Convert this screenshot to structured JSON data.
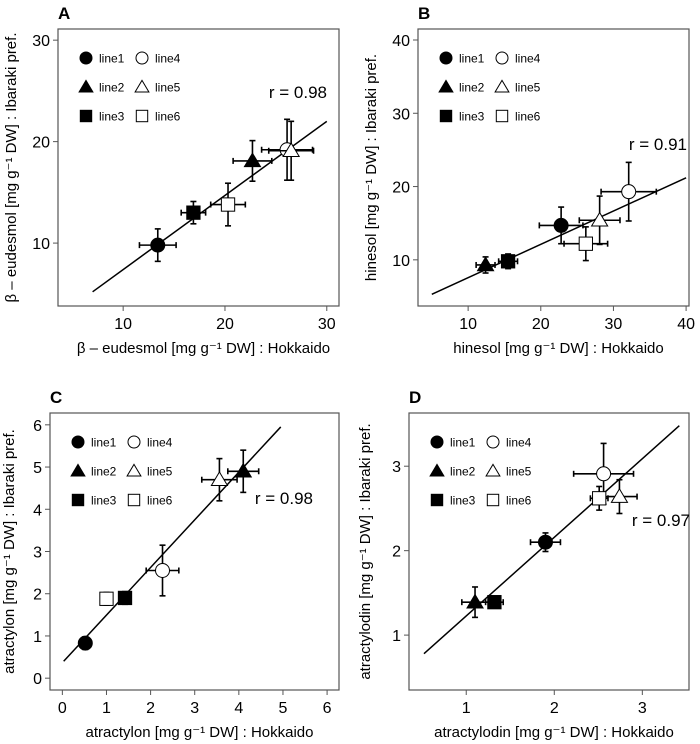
{
  "chart_data": [
    {
      "panel": "A",
      "type": "scatter",
      "xlabel": "β – eudesmol [mg g⁻¹ DW] : Hokkaido",
      "ylabel": "β – eudesmol [mg g⁻¹ DW] : Ibaraki pref.",
      "xlim": [
        3.6,
        31.2
      ],
      "ylim": [
        3.8,
        31.1
      ],
      "xticks": [
        10,
        20,
        30
      ],
      "yticks": [
        10,
        20,
        30
      ],
      "annotation": "r = 0.98",
      "fit_line": [
        [
          7,
          5.2
        ],
        [
          30,
          22
        ]
      ],
      "points": [
        {
          "name": "line1",
          "x": 13.4,
          "y": 9.8,
          "xerr": 1.8,
          "yerr": 1.6
        },
        {
          "name": "line2",
          "x": 22.7,
          "y": 18.1,
          "xerr": 1.9,
          "yerr": 2.0
        },
        {
          "name": "line3",
          "x": 16.9,
          "y": 13.0,
          "xerr": 1.2,
          "yerr": 1.1
        },
        {
          "name": "line4",
          "x": 26.1,
          "y": 19.2,
          "xerr": 2.5,
          "yerr": 3.0
        },
        {
          "name": "line5",
          "x": 26.5,
          "y": 19.1,
          "xerr": 2.2,
          "yerr": 2.9
        },
        {
          "name": "line6",
          "x": 20.3,
          "y": 13.8,
          "xerr": 1.7,
          "yerr": 2.1
        }
      ]
    },
    {
      "panel": "B",
      "type": "scatter",
      "xlabel": "hinesol [mg g⁻¹ DW] : Hokkaido",
      "ylabel": "hinesol [mg g⁻¹ DW] : Ibaraki pref.",
      "xlim": [
        3.1,
        40.4
      ],
      "ylim": [
        3.7,
        41.5
      ],
      "xticks": [
        10,
        20,
        30,
        40
      ],
      "yticks": [
        10,
        20,
        30,
        40
      ],
      "annotation": "r = 0.91",
      "fit_line": [
        [
          5,
          5.3
        ],
        [
          40,
          21.2
        ]
      ],
      "points": [
        {
          "name": "line1",
          "x": 22.8,
          "y": 14.7,
          "xerr": 3.0,
          "yerr": 2.5
        },
        {
          "name": "line2",
          "x": 12.4,
          "y": 9.3,
          "xerr": 1.3,
          "yerr": 1.1
        },
        {
          "name": "line3",
          "x": 15.5,
          "y": 9.8,
          "xerr": 1.3,
          "yerr": 1.0
        },
        {
          "name": "line4",
          "x": 32.1,
          "y": 19.3,
          "xerr": 3.8,
          "yerr": 4.0
        },
        {
          "name": "line5",
          "x": 28.1,
          "y": 15.4,
          "xerr": 2.8,
          "yerr": 3.3
        },
        {
          "name": "line6",
          "x": 26.2,
          "y": 12.2,
          "xerr": 3.0,
          "yerr": 2.3
        }
      ]
    },
    {
      "panel": "C",
      "type": "scatter",
      "xlabel": "atractylon [mg g⁻¹ DW] : Hokkaido",
      "ylabel": "atractylon [mg g⁻¹ DW] : Ibaraki pref.",
      "xlim": [
        -0.28,
        6.27
      ],
      "ylim": [
        -0.28,
        6.28
      ],
      "xticks": [
        0,
        1,
        2,
        3,
        4,
        5,
        6
      ],
      "yticks": [
        0,
        1,
        2,
        3,
        4,
        5,
        6
      ],
      "annotation": "r = 0.98",
      "fit_line": [
        [
          0.03,
          0.4
        ],
        [
          4.95,
          5.95
        ]
      ],
      "points": [
        {
          "name": "line1",
          "x": 0.52,
          "y": 0.83,
          "xerr": 0.05,
          "yerr": 0.15
        },
        {
          "name": "line2",
          "x": 4.1,
          "y": 4.9,
          "xerr": 0.35,
          "yerr": 0.5
        },
        {
          "name": "line3",
          "x": 1.42,
          "y": 1.9,
          "xerr": 0.1,
          "yerr": 0.15
        },
        {
          "name": "line4",
          "x": 2.27,
          "y": 2.55,
          "xerr": 0.37,
          "yerr": 0.6
        },
        {
          "name": "line5",
          "x": 3.56,
          "y": 4.7,
          "xerr": 0.4,
          "yerr": 0.5
        },
        {
          "name": "line6",
          "x": 1.0,
          "y": 1.88,
          "xerr": 0.05,
          "yerr": 0.15
        }
      ]
    },
    {
      "panel": "D",
      "type": "scatter",
      "xlabel": "atractylodin [mg g⁻¹ DW] : Hokkaido",
      "ylabel": "atractylodin [mg g⁻¹ DW] : Ibaraki pref.",
      "xlim": [
        0.35,
        3.53
      ],
      "ylim": [
        0.35,
        3.63
      ],
      "xticks": [
        1,
        2,
        3
      ],
      "yticks": [
        1,
        2,
        3
      ],
      "annotation": "r = 0.97",
      "fit_line": [
        [
          0.52,
          0.78
        ],
        [
          3.42,
          3.48
        ]
      ],
      "points": [
        {
          "name": "line1",
          "x": 1.9,
          "y": 2.1,
          "xerr": 0.17,
          "yerr": 0.11
        },
        {
          "name": "line2",
          "x": 1.1,
          "y": 1.39,
          "xerr": 0.15,
          "yerr": 0.18
        },
        {
          "name": "line3",
          "x": 1.32,
          "y": 1.39,
          "xerr": 0.1,
          "yerr": 0.03
        },
        {
          "name": "line4",
          "x": 2.56,
          "y": 2.91,
          "xerr": 0.34,
          "yerr": 0.36
        },
        {
          "name": "line5",
          "x": 2.74,
          "y": 2.64,
          "xerr": 0.2,
          "yerr": 0.2
        },
        {
          "name": "line6",
          "x": 2.51,
          "y": 2.62,
          "xerr": 0.1,
          "yerr": 0.14
        }
      ]
    }
  ],
  "legend": {
    "entries": [
      {
        "name": "line1",
        "marker": "circle",
        "filled": true
      },
      {
        "name": "line4",
        "marker": "circle",
        "filled": false
      },
      {
        "name": "line2",
        "marker": "triangle",
        "filled": true
      },
      {
        "name": "line5",
        "marker": "triangle",
        "filled": false
      },
      {
        "name": "line3",
        "marker": "square",
        "filled": true
      },
      {
        "name": "line6",
        "marker": "square",
        "filled": false
      }
    ],
    "placement": "top-left"
  },
  "colors": {
    "ink": "#000000",
    "frame": "#555555",
    "open_fill": "#ffffff"
  }
}
